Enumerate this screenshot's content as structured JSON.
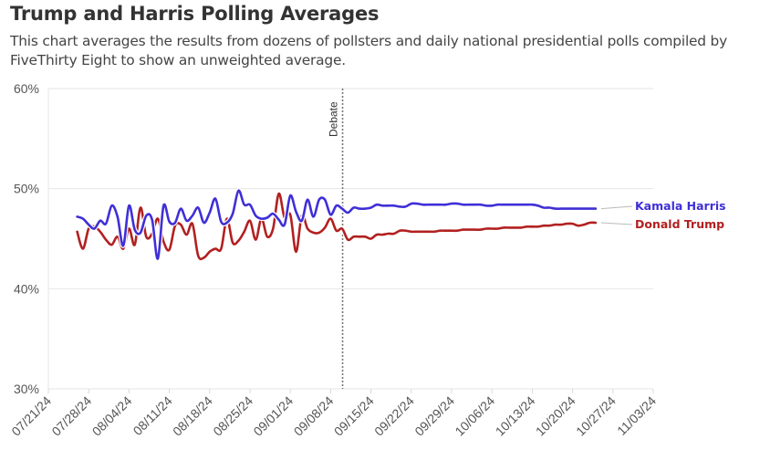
{
  "header": {
    "title": "Trump and Harris Polling Averages",
    "subtitle": "This chart averages the results from dozens of pollsters and daily national presidential polls compiled by FiveThirty Eight to show an unweighted average."
  },
  "chart_data": {
    "type": "line",
    "title": "Trump and Harris Polling Averages",
    "subtitle": "This chart averages the results from dozens of pollsters and daily national presidential polls compiled by FiveThirty Eight to show an unweighted average.",
    "xlabel": "",
    "ylabel": "",
    "x_start": "2024-07-21",
    "x_end": "2024-11-03",
    "xtick_labels": [
      "07/21/24",
      "07/28/24",
      "08/04/24",
      "08/11/24",
      "08/18/24",
      "08/25/24",
      "09/01/24",
      "09/08/24",
      "09/15/24",
      "09/22/24",
      "09/29/24",
      "10/06/24",
      "10/13/24",
      "10/20/24",
      "10/27/24",
      "11/03/24"
    ],
    "ylim": [
      30,
      60
    ],
    "yticks": [
      30,
      40,
      50,
      60
    ],
    "ytick_labels": [
      "30%",
      "40%",
      "50%",
      "60%"
    ],
    "grid": true,
    "annotations": [
      {
        "type": "vline",
        "date": "2024-09-10",
        "label": "Debate",
        "style": "dotted"
      }
    ],
    "legend": "direct-labels-right",
    "data_start_day_offset": 5,
    "day_step": 1,
    "series": [
      {
        "name": "Kamala Harris",
        "color": "#3f2fd6",
        "values": [
          47.2,
          47.0,
          46.4,
          46.0,
          46.8,
          46.5,
          48.3,
          47.2,
          44.3,
          48.3,
          45.9,
          45.6,
          47.3,
          46.9,
          43.0,
          48.3,
          46.7,
          46.6,
          48.0,
          46.8,
          47.3,
          48.1,
          46.6,
          47.6,
          49.0,
          46.7,
          46.6,
          47.5,
          49.8,
          48.4,
          48.4,
          47.3,
          47.0,
          47.1,
          47.5,
          46.9,
          46.4,
          49.3,
          47.7,
          46.8,
          48.9,
          47.2,
          48.9,
          48.9,
          47.4,
          48.3,
          48.0,
          47.6,
          48.1,
          48.0,
          48.0,
          48.1,
          48.4,
          48.3,
          48.3,
          48.3,
          48.2,
          48.2,
          48.5,
          48.5,
          48.4,
          48.4,
          48.4,
          48.4,
          48.4,
          48.5,
          48.5,
          48.4,
          48.4,
          48.4,
          48.4,
          48.3,
          48.3,
          48.4,
          48.4,
          48.4,
          48.4,
          48.4,
          48.4,
          48.4,
          48.3,
          48.1,
          48.1,
          48.0,
          48.0,
          48.0,
          48.0,
          48.0,
          48.0,
          48.0,
          48.0
        ]
      },
      {
        "name": "Donald Trump",
        "color": "#b22020",
        "values": [
          45.7,
          44.0,
          46.0,
          46.2,
          45.7,
          44.9,
          44.4,
          45.2,
          44.0,
          46.0,
          44.4,
          48.1,
          45.2,
          45.5,
          47.0,
          44.7,
          43.9,
          46.3,
          46.4,
          45.4,
          46.5,
          43.3,
          43.1,
          43.7,
          44.0,
          44.0,
          47.0,
          44.6,
          44.8,
          45.7,
          46.8,
          44.9,
          47.0,
          45.2,
          46.0,
          49.5,
          47.1,
          47.4,
          43.7,
          47.3,
          46.0,
          45.6,
          45.6,
          46.1,
          47.0,
          45.8,
          46.0,
          44.9,
          45.2,
          45.2,
          45.2,
          45.0,
          45.4,
          45.4,
          45.5,
          45.5,
          45.8,
          45.8,
          45.7,
          45.7,
          45.7,
          45.7,
          45.7,
          45.8,
          45.8,
          45.8,
          45.8,
          45.9,
          45.9,
          45.9,
          45.9,
          46.0,
          46.0,
          46.0,
          46.1,
          46.1,
          46.1,
          46.1,
          46.2,
          46.2,
          46.2,
          46.3,
          46.3,
          46.4,
          46.4,
          46.5,
          46.5,
          46.3,
          46.4,
          46.6,
          46.6
        ]
      }
    ]
  },
  "labels": {
    "harris": "Kamala Harris",
    "trump": "Donald Trump",
    "debate": "Debate"
  }
}
